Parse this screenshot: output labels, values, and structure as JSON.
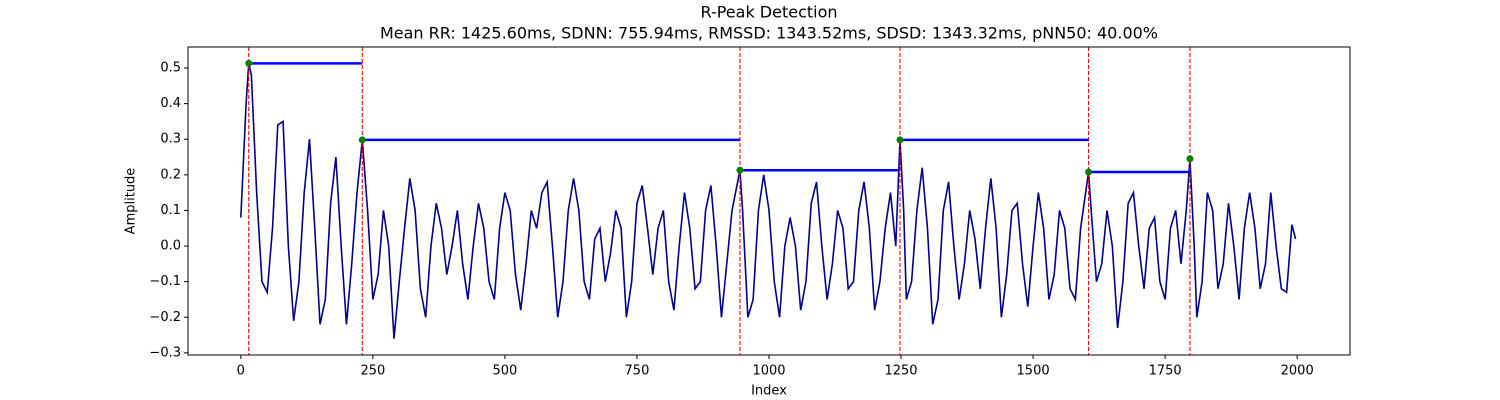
{
  "chart_data": {
    "type": "line",
    "title": "R-Peak Detection",
    "subtitle": "Mean RR: 1425.60ms, SDNN: 755.94ms, RMSSD: 1343.52ms, SDSD: 1343.32ms, pNN50: 40.00%",
    "xlabel": "Index",
    "ylabel": "Amplitude",
    "xlim": [
      -100,
      2100
    ],
    "ylim": [
      -0.306,
      0.559
    ],
    "xticks": [
      0,
      250,
      500,
      750,
      1000,
      1250,
      1500,
      1750,
      2000
    ],
    "yticks": [
      {
        "value": -0.3,
        "label": "−0.3"
      },
      {
        "value": -0.2,
        "label": "−0.2"
      },
      {
        "value": -0.1,
        "label": "−0.1"
      },
      {
        "value": 0,
        "label": "0.0"
      },
      0.1,
      0.2,
      0.3,
      0.4,
      0.5
    ],
    "series": [
      {
        "color": "#00008b",
        "x": [
          0,
          10,
          15,
          20,
          30,
          40,
          50,
          60,
          70,
          80,
          90,
          100,
          110,
          120,
          130,
          140,
          150,
          160,
          170,
          180,
          190,
          200,
          210,
          220,
          230,
          240,
          250,
          260,
          270,
          280,
          290,
          300,
          310,
          320,
          330,
          340,
          350,
          360,
          370,
          380,
          390,
          400,
          410,
          420,
          430,
          440,
          450,
          460,
          470,
          480,
          490,
          500,
          510,
          520,
          530,
          540,
          550,
          560,
          570,
          580,
          590,
          600,
          610,
          620,
          630,
          640,
          650,
          660,
          670,
          680,
          690,
          700,
          710,
          720,
          730,
          740,
          750,
          760,
          770,
          780,
          790,
          800,
          810,
          820,
          830,
          840,
          850,
          860,
          870,
          880,
          890,
          900,
          910,
          920,
          930,
          945,
          950,
          960,
          970,
          980,
          990,
          1000,
          1010,
          1020,
          1030,
          1040,
          1050,
          1060,
          1070,
          1080,
          1090,
          1100,
          1110,
          1120,
          1130,
          1140,
          1150,
          1160,
          1170,
          1180,
          1190,
          1200,
          1210,
          1220,
          1230,
          1240,
          1248,
          1255,
          1260,
          1270,
          1280,
          1290,
          1300,
          1310,
          1320,
          1330,
          1340,
          1350,
          1360,
          1370,
          1380,
          1390,
          1400,
          1410,
          1420,
          1430,
          1440,
          1450,
          1460,
          1470,
          1480,
          1490,
          1500,
          1510,
          1520,
          1530,
          1540,
          1550,
          1560,
          1570,
          1580,
          1590,
          1605,
          1610,
          1620,
          1630,
          1640,
          1650,
          1660,
          1670,
          1680,
          1690,
          1700,
          1710,
          1720,
          1730,
          1740,
          1750,
          1760,
          1770,
          1780,
          1790,
          1797,
          1805,
          1810,
          1820,
          1830,
          1840,
          1850,
          1860,
          1870,
          1880,
          1890,
          1900,
          1910,
          1920,
          1930,
          1940,
          1950,
          1960,
          1970,
          1980,
          1990,
          1997
        ],
        "values": [
          0.08,
          0.4,
          0.513,
          0.48,
          0.15,
          -0.1,
          -0.13,
          0.05,
          0.34,
          0.35,
          0.0,
          -0.21,
          -0.1,
          0.15,
          0.3,
          0.05,
          -0.22,
          -0.15,
          0.12,
          0.25,
          0.0,
          -0.22,
          -0.05,
          0.15,
          0.298,
          0.1,
          -0.15,
          -0.08,
          0.1,
          0.0,
          -0.26,
          -0.1,
          0.05,
          0.19,
          0.1,
          -0.12,
          -0.2,
          0.0,
          0.12,
          0.05,
          -0.08,
          0.0,
          0.1,
          -0.05,
          -0.15,
          0.0,
          0.12,
          0.05,
          -0.1,
          -0.15,
          0.05,
          0.15,
          0.1,
          -0.08,
          -0.18,
          -0.05,
          0.1,
          0.05,
          0.15,
          0.18,
          0.0,
          -0.2,
          -0.1,
          0.1,
          0.19,
          0.1,
          -0.1,
          -0.15,
          0.02,
          0.05,
          -0.1,
          -0.02,
          0.1,
          0.05,
          -0.2,
          -0.1,
          0.12,
          0.17,
          0.05,
          -0.08,
          0.05,
          0.1,
          -0.1,
          -0.18,
          0.0,
          0.15,
          0.05,
          -0.12,
          -0.1,
          0.1,
          0.17,
          0.0,
          -0.2,
          -0.05,
          0.1,
          0.213,
          0.1,
          -0.2,
          -0.15,
          0.1,
          0.2,
          0.1,
          -0.1,
          -0.2,
          0.0,
          0.08,
          0.0,
          -0.18,
          -0.1,
          0.12,
          0.18,
          0.0,
          -0.15,
          -0.05,
          0.1,
          0.05,
          -0.12,
          -0.1,
          0.1,
          0.18,
          0.05,
          -0.18,
          -0.1,
          0.05,
          0.15,
          0.0,
          0.298,
          0.1,
          -0.15,
          -0.1,
          0.1,
          0.22,
          0.05,
          -0.22,
          -0.15,
          0.1,
          0.18,
          0.0,
          -0.15,
          -0.05,
          0.1,
          0.02,
          -0.12,
          0.05,
          0.19,
          0.05,
          -0.2,
          -0.08,
          0.1,
          0.12,
          -0.05,
          -0.17,
          0.0,
          0.15,
          0.05,
          -0.15,
          -0.08,
          0.1,
          0.05,
          -0.12,
          -0.15,
          0.05,
          0.208,
          0.1,
          -0.1,
          -0.05,
          0.1,
          0.0,
          -0.23,
          -0.1,
          0.12,
          0.15,
          0.0,
          -0.12,
          0.05,
          0.08,
          -0.1,
          -0.15,
          0.05,
          0.1,
          -0.05,
          0.1,
          0.245,
          0.0,
          -0.2,
          -0.1,
          0.15,
          0.1,
          -0.12,
          -0.05,
          0.12,
          0.0,
          -0.15,
          0.05,
          0.15,
          0.05,
          -0.12,
          -0.05,
          0.15,
          0.0,
          -0.12,
          -0.13,
          0.06,
          0.02
        ]
      }
    ],
    "peaks": {
      "color": "#008000",
      "x": [
        15,
        230,
        945,
        1248,
        1605,
        1797
      ],
      "values": [
        0.513,
        0.298,
        0.213,
        0.298,
        0.208,
        0.245
      ]
    },
    "peak_line_color": "#ff0000",
    "interval_color": "#0000ff"
  }
}
